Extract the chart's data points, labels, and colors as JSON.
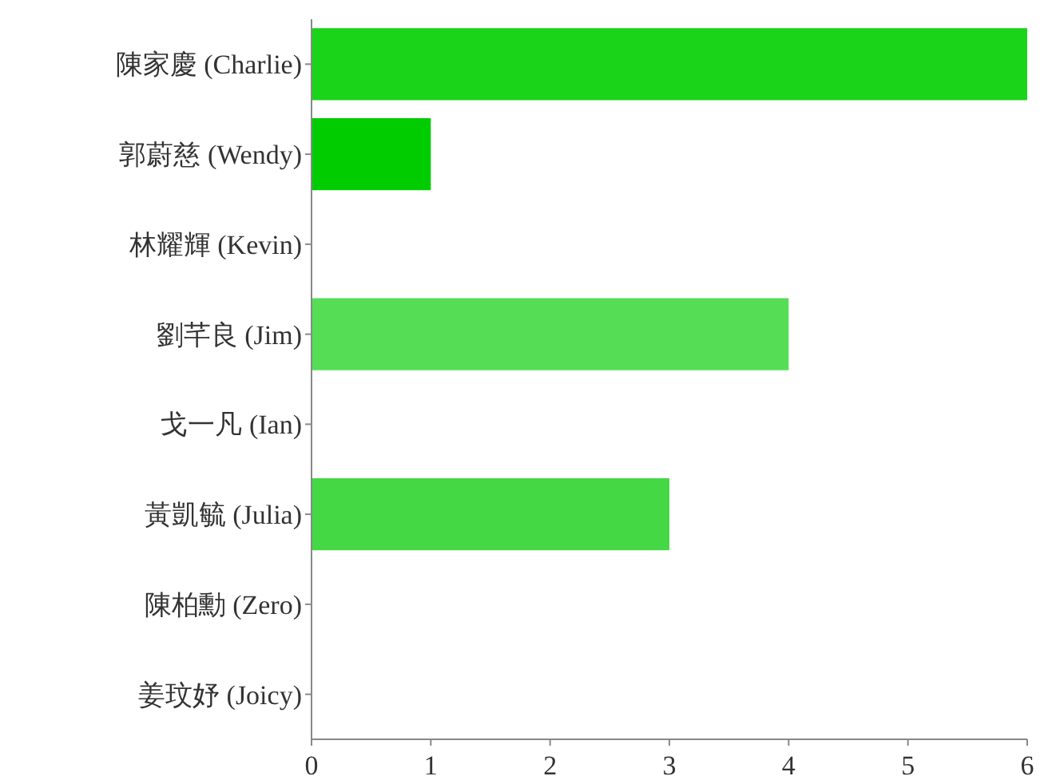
{
  "chart_data": {
    "type": "bar",
    "orientation": "horizontal",
    "categories": [
      "陳家慶 (Charlie)",
      "郭蔚慈 (Wendy)",
      "林耀輝 (Kevin)",
      "劉芊良 (Jim)",
      "戈一凡 (Ian)",
      "黃凱毓 (Julia)",
      "陳柏勳 (Zero)",
      "姜玟妤 (Joicy)"
    ],
    "values": [
      6,
      1,
      0,
      4,
      0,
      3,
      0,
      0
    ],
    "colors": [
      "#1ad41a",
      "#00cc00",
      "#1ad41a",
      "#55dd55",
      "#1ad41a",
      "#44d844",
      "#1ad41a",
      "#1ad41a"
    ],
    "xlim": [
      0,
      6
    ],
    "xticks": [
      0,
      1,
      2,
      3,
      4,
      5,
      6
    ],
    "grid": false
  }
}
